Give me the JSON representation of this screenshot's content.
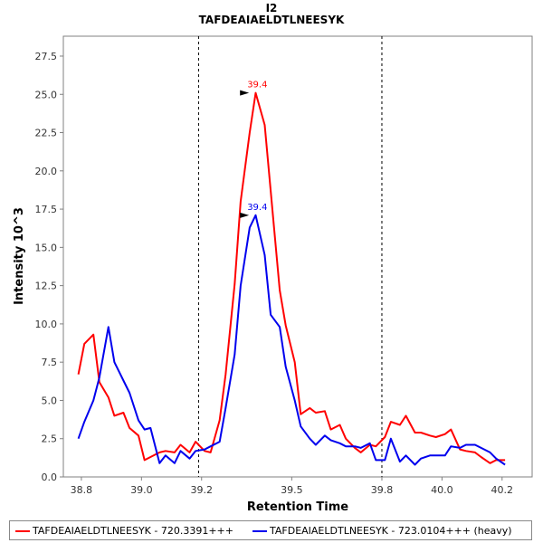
{
  "chart_data": {
    "type": "line",
    "title": "I2",
    "subtitle": "TAFDEAIAELDTLNEESYK",
    "xlabel": "Retention Time",
    "ylabel": "Intensity 10^3",
    "xlim": [
      38.74,
      40.3
    ],
    "ylim": [
      0,
      28.8
    ],
    "xticks": [
      "38.8",
      "39.0",
      "39.2",
      "39.5",
      "39.8",
      "40.0",
      "40.2"
    ],
    "xtick_values": [
      38.8,
      39.0,
      39.2,
      39.5,
      39.8,
      40.0,
      40.2
    ],
    "yticks": [
      "0.0",
      "2.5",
      "5.0",
      "7.5",
      "10.0",
      "12.5",
      "15.0",
      "17.5",
      "20.0",
      "22.5",
      "25.0",
      "27.5"
    ],
    "ytick_values": [
      0,
      2.5,
      5,
      7.5,
      10,
      12.5,
      15,
      17.5,
      20,
      22.5,
      25,
      27.5
    ],
    "vlines": [
      39.19,
      39.8
    ],
    "grid": false,
    "legend_position": "bottom",
    "series": [
      {
        "name": "TAFDEAIAELDTLNEESYK - 720.3391+++",
        "color": "#ff0000",
        "peak_label": "39.4",
        "peak": [
          39.37,
          25.1
        ],
        "x": [
          38.79,
          38.81,
          38.84,
          38.86,
          38.89,
          38.91,
          38.94,
          38.96,
          38.99,
          39.01,
          39.03,
          39.06,
          39.08,
          39.11,
          39.13,
          39.16,
          39.18,
          39.21,
          39.23,
          39.26,
          39.28,
          39.31,
          39.33,
          39.36,
          39.38,
          39.41,
          39.43,
          39.46,
          39.48,
          39.51,
          39.53,
          39.56,
          39.58,
          39.61,
          39.63,
          39.66,
          39.68,
          39.71,
          39.73,
          39.76,
          39.78,
          39.81,
          39.83,
          39.86,
          39.88,
          39.91,
          39.93,
          39.96,
          39.98,
          40.01,
          40.03,
          40.06,
          40.08,
          40.11,
          40.13,
          40.16,
          40.18,
          40.21
        ],
        "y": [
          6.7,
          8.7,
          9.3,
          6.2,
          5.2,
          4.0,
          4.2,
          3.2,
          2.7,
          1.1,
          1.3,
          1.6,
          1.7,
          1.6,
          2.1,
          1.6,
          2.3,
          1.7,
          1.6,
          3.7,
          6.7,
          12.6,
          18.0,
          22.5,
          25.1,
          23.0,
          18.7,
          12.2,
          9.9,
          7.5,
          4.1,
          4.5,
          4.2,
          4.3,
          3.1,
          3.4,
          2.5,
          1.9,
          1.6,
          2.1,
          2.0,
          2.6,
          3.6,
          3.4,
          4.0,
          2.9,
          2.9,
          2.7,
          2.6,
          2.8,
          3.1,
          1.8,
          1.7,
          1.6,
          1.3,
          0.9,
          1.1,
          1.1
        ]
      },
      {
        "name": "TAFDEAIAELDTLNEESYK - 723.0104+++ (heavy)",
        "color": "#0000ee",
        "peak_label": "39.4",
        "peak": [
          39.37,
          17.1
        ],
        "x": [
          38.79,
          38.81,
          38.84,
          38.86,
          38.89,
          38.91,
          38.94,
          38.96,
          38.99,
          39.01,
          39.03,
          39.06,
          39.08,
          39.11,
          39.13,
          39.16,
          39.18,
          39.21,
          39.23,
          39.26,
          39.28,
          39.31,
          39.33,
          39.36,
          39.38,
          39.41,
          39.43,
          39.46,
          39.48,
          39.51,
          39.53,
          39.56,
          39.58,
          39.61,
          39.63,
          39.66,
          39.68,
          39.71,
          39.73,
          39.76,
          39.78,
          39.81,
          39.83,
          39.86,
          39.88,
          39.91,
          39.93,
          39.96,
          39.98,
          40.01,
          40.03,
          40.06,
          40.08,
          40.11,
          40.13,
          40.16,
          40.18,
          40.21
        ],
        "y": [
          2.5,
          3.6,
          5.0,
          6.5,
          9.8,
          7.5,
          6.3,
          5.5,
          3.7,
          3.1,
          3.2,
          0.9,
          1.4,
          0.9,
          1.7,
          1.2,
          1.7,
          1.8,
          2.0,
          2.3,
          4.5,
          8.0,
          12.5,
          16.3,
          17.1,
          14.5,
          10.6,
          9.8,
          7.2,
          5.0,
          3.3,
          2.5,
          2.1,
          2.7,
          2.4,
          2.2,
          2.0,
          2.0,
          1.9,
          2.2,
          1.1,
          1.1,
          2.5,
          1.0,
          1.4,
          0.8,
          1.2,
          1.4,
          1.4,
          1.4,
          2.0,
          1.9,
          2.1,
          2.1,
          1.9,
          1.6,
          1.2,
          0.8
        ]
      }
    ]
  }
}
